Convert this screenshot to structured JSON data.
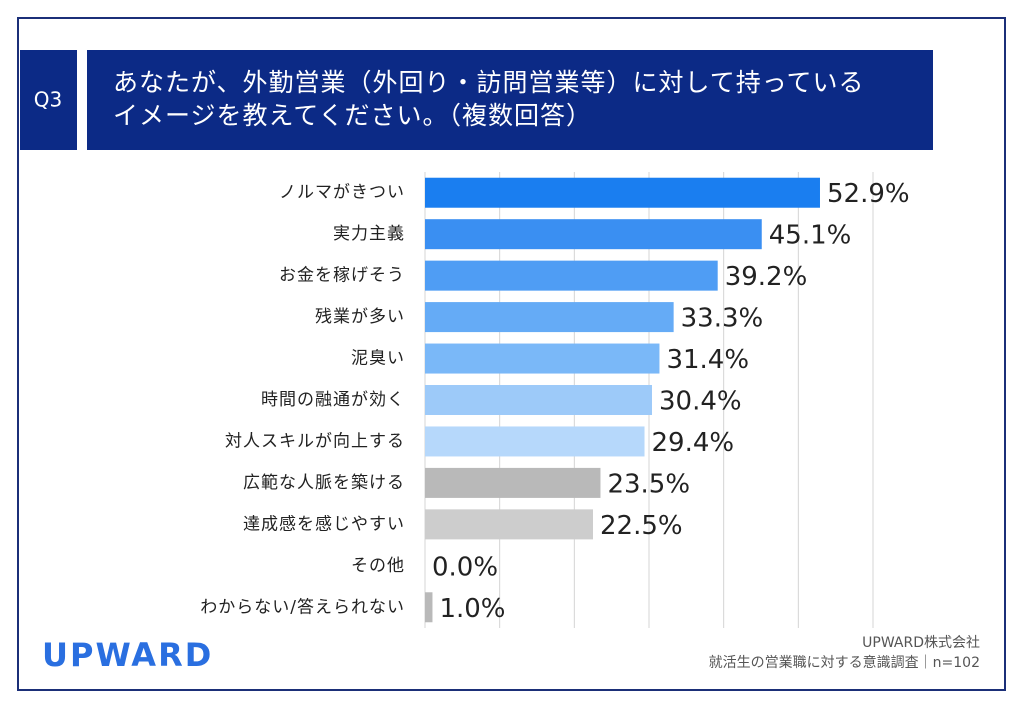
{
  "chart_data": {
    "type": "bar",
    "orientation": "horizontal",
    "question": "Q3",
    "title": [
      "あなたが、外勤営業（外回り・訪問営業等）に対して持っている",
      "イメージを教えてください。（複数回答）"
    ],
    "categories": [
      "ノルマがきつい",
      "実力主義",
      "お金を稼げそう",
      "残業が多い",
      "泥臭い",
      "時間の融通が効く",
      "対人スキルが向上する",
      "広範な人脈を築ける",
      "達成感を感じやすい",
      "その他",
      "わからない/答えられない"
    ],
    "values": [
      52.9,
      45.1,
      39.2,
      33.3,
      31.4,
      30.4,
      29.4,
      23.5,
      22.5,
      0.0,
      1.0
    ],
    "value_labels": [
      "52.9%",
      "45.1%",
      "39.2%",
      "33.3%",
      "31.4%",
      "30.4%",
      "29.4%",
      "23.5%",
      "22.5%",
      "0.0%",
      "1.0%"
    ],
    "colors": [
      "#1a7ef0",
      "#3a8ff2",
      "#4f9df4",
      "#65abf6",
      "#7ab8f8",
      "#9dcaf9",
      "#b6d8fb",
      "#b9b9b9",
      "#cdcdcd",
      "#cdcdcd",
      "#b9b9b9"
    ],
    "xlim": [
      0,
      60
    ],
    "xticks": [
      0,
      10,
      20,
      30,
      40,
      50,
      60
    ],
    "grid": true,
    "logo": "UPWARD",
    "source": [
      "UPWARD株式会社",
      "就活生の営業職に対する意識調査｜n=102"
    ]
  }
}
